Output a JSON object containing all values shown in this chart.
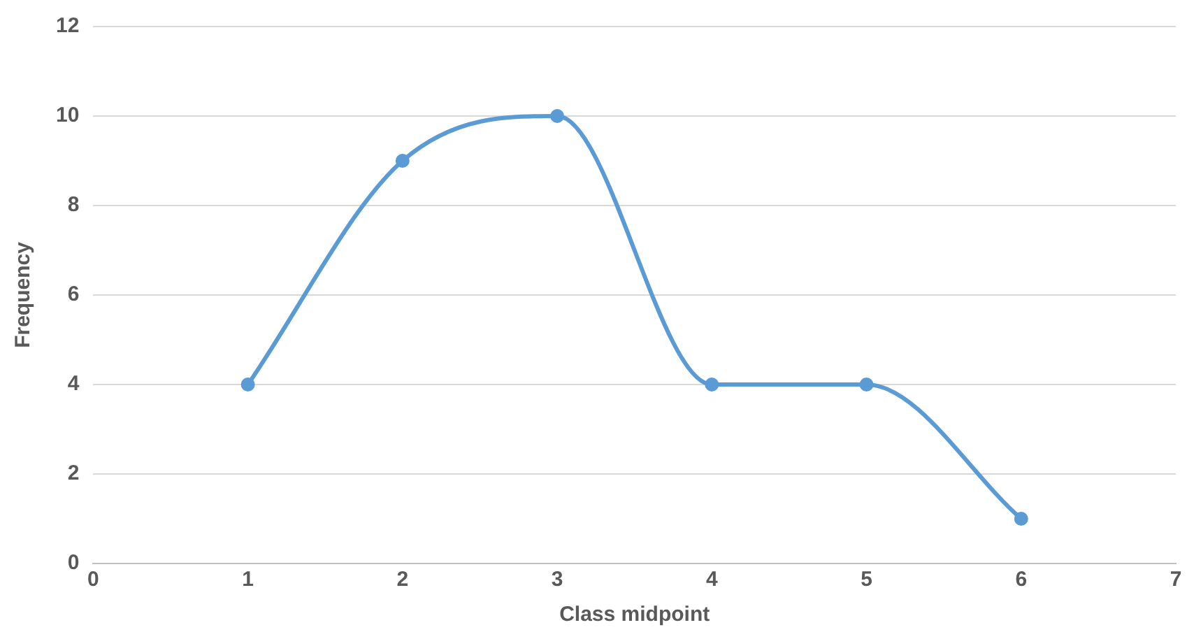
{
  "chart_data": {
    "type": "line",
    "xlabel": "Class midpoint",
    "ylabel": "Frequency",
    "x": [
      1,
      2,
      3,
      4,
      5,
      6
    ],
    "series": [
      {
        "color": "#5b9bd5",
        "values": [
          4,
          9,
          10,
          4,
          4,
          1
        ]
      }
    ],
    "xlim": [
      0,
      7
    ],
    "xticks": [
      0,
      1,
      2,
      3,
      4,
      5,
      6,
      7
    ],
    "ylim": [
      0,
      12
    ],
    "yticks": [
      0,
      2,
      4,
      6,
      8,
      10,
      12
    ],
    "grid": "y",
    "marker": "circle",
    "line_style": "solid",
    "legend": false
  }
}
